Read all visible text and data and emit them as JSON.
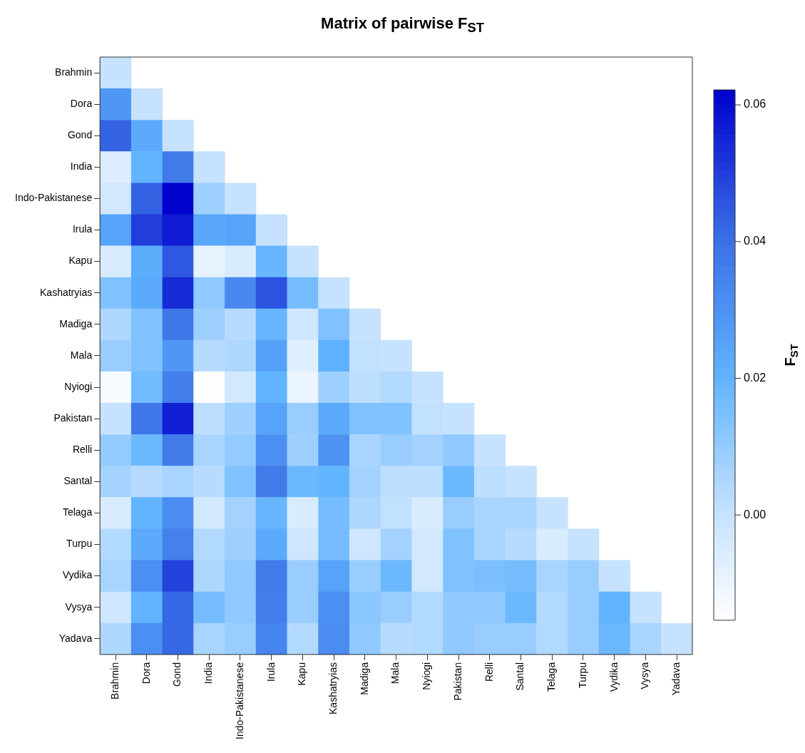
{
  "chart_data": {
    "type": "heatmap",
    "title": "Matrix of pairwise F$_{ST}$",
    "clabel": "F$_{ST}$",
    "categories": [
      "Brahmin",
      "Dora",
      "Gond",
      "India",
      "Indo-Pakistanese",
      "Irula",
      "Kapu",
      "Kashatryias",
      "Madiga",
      "Mala",
      "Nyiogi",
      "Pakistan",
      "Relli",
      "Santal",
      "Telaga",
      "Turpu",
      "Vydika",
      "Vysya",
      "Yadava"
    ],
    "y_categories": [
      "Brahmin",
      "Dora",
      "Gond",
      "India",
      "Indo-Pakistanese",
      "Irula",
      "Kapu",
      "Kashatryias",
      "Madiga",
      "Mala",
      "Nyiogi",
      "Pakistan",
      "Relli",
      "Santal",
      "Telaga",
      "Turpu",
      "Vydika",
      "Vysya",
      "Yadava"
    ],
    "cells": [
      [
        0,
        null,
        null,
        null,
        null,
        null,
        null,
        null,
        null,
        null,
        null,
        null,
        null,
        null,
        null,
        null,
        null,
        null,
        null
      ],
      [
        0.029,
        0,
        null,
        null,
        null,
        null,
        null,
        null,
        null,
        null,
        null,
        null,
        null,
        null,
        null,
        null,
        null,
        null,
        null
      ],
      [
        0.043,
        0.023,
        0,
        null,
        null,
        null,
        null,
        null,
        null,
        null,
        null,
        null,
        null,
        null,
        null,
        null,
        null,
        null,
        null
      ],
      [
        -0.006,
        0.02,
        0.037,
        0,
        null,
        null,
        null,
        null,
        null,
        null,
        null,
        null,
        null,
        null,
        null,
        null,
        null,
        null,
        null
      ],
      [
        -0.003,
        0.043,
        0.062,
        0.008,
        0,
        null,
        null,
        null,
        null,
        null,
        null,
        null,
        null,
        null,
        null,
        null,
        null,
        null,
        null
      ],
      [
        0.025,
        0.05,
        0.057,
        0.024,
        0.025,
        0,
        null,
        null,
        null,
        null,
        null,
        null,
        null,
        null,
        null,
        null,
        null,
        null,
        null
      ],
      [
        -0.005,
        0.022,
        0.045,
        -0.009,
        -0.005,
        0.019,
        0,
        null,
        null,
        null,
        null,
        null,
        null,
        null,
        null,
        null,
        null,
        null,
        null
      ],
      [
        0.014,
        0.023,
        0.054,
        0.011,
        0.033,
        0.046,
        0.016,
        0,
        null,
        null,
        null,
        null,
        null,
        null,
        null,
        null,
        null,
        null,
        null
      ],
      [
        0.005,
        0.014,
        0.038,
        0.008,
        0.003,
        0.019,
        -0.002,
        0.014,
        0,
        null,
        null,
        null,
        null,
        null,
        null,
        null,
        null,
        null,
        null
      ],
      [
        0.009,
        0.014,
        0.029,
        0.003,
        0.005,
        0.026,
        -0.007,
        0.021,
        0.001,
        0,
        null,
        null,
        null,
        null,
        null,
        null,
        null,
        null,
        null
      ],
      [
        -0.013,
        0.017,
        0.036,
        -0.015,
        -0.003,
        0.02,
        -0.01,
        0.008,
        0.002,
        0.004,
        0,
        null,
        null,
        null,
        null,
        null,
        null,
        null,
        null
      ],
      [
        0.0,
        0.038,
        0.056,
        0.002,
        0.008,
        0.025,
        0.009,
        0.023,
        0.014,
        0.014,
        0.001,
        0,
        null,
        null,
        null,
        null,
        null,
        null,
        null
      ],
      [
        0.01,
        0.018,
        0.037,
        0.006,
        0.01,
        0.031,
        0.008,
        0.03,
        0.006,
        0.009,
        0.007,
        0.011,
        0,
        null,
        null,
        null,
        null,
        null,
        null
      ],
      [
        0.007,
        0.003,
        0.006,
        0.003,
        0.014,
        0.037,
        0.018,
        0.02,
        0.007,
        0.002,
        0.002,
        0.018,
        0.002,
        0,
        null,
        null,
        null,
        null,
        null
      ],
      [
        -0.005,
        0.02,
        0.032,
        -0.003,
        0.007,
        0.019,
        -0.005,
        0.016,
        0.005,
        0.001,
        -0.005,
        0.009,
        0.006,
        0.006,
        0,
        null,
        null,
        null,
        null
      ],
      [
        0.004,
        0.023,
        0.035,
        0.004,
        0.008,
        0.023,
        -0.002,
        0.016,
        -0.002,
        0.007,
        -0.003,
        0.014,
        0.006,
        0.003,
        -0.005,
        0,
        null,
        null,
        null
      ],
      [
        0.006,
        0.031,
        0.049,
        0.005,
        0.011,
        0.037,
        0.009,
        0.025,
        0.009,
        0.018,
        -0.003,
        0.014,
        0.015,
        0.016,
        0.006,
        0.009,
        0,
        null,
        null
      ],
      [
        -0.002,
        0.02,
        0.042,
        0.016,
        0.011,
        0.036,
        0.009,
        0.031,
        0.012,
        0.009,
        0.004,
        0.011,
        0.011,
        0.018,
        0.004,
        0.009,
        0.02,
        0,
        null
      ],
      [
        0.005,
        0.031,
        0.042,
        0.006,
        0.009,
        0.034,
        0.004,
        0.032,
        0.011,
        0.003,
        0.004,
        0.011,
        0.009,
        0.009,
        0.004,
        0.009,
        0.018,
        0.006,
        0
      ]
    ],
    "clim": [
      -0.0154,
      0.0622
    ],
    "cticks": [
      {
        "value": 0,
        "label": "0.00"
      },
      {
        "value": 0.02,
        "label": "0.02"
      },
      {
        "value": 0.04,
        "label": "0.04"
      },
      {
        "value": 0.06,
        "label": "0.06"
      }
    ]
  }
}
